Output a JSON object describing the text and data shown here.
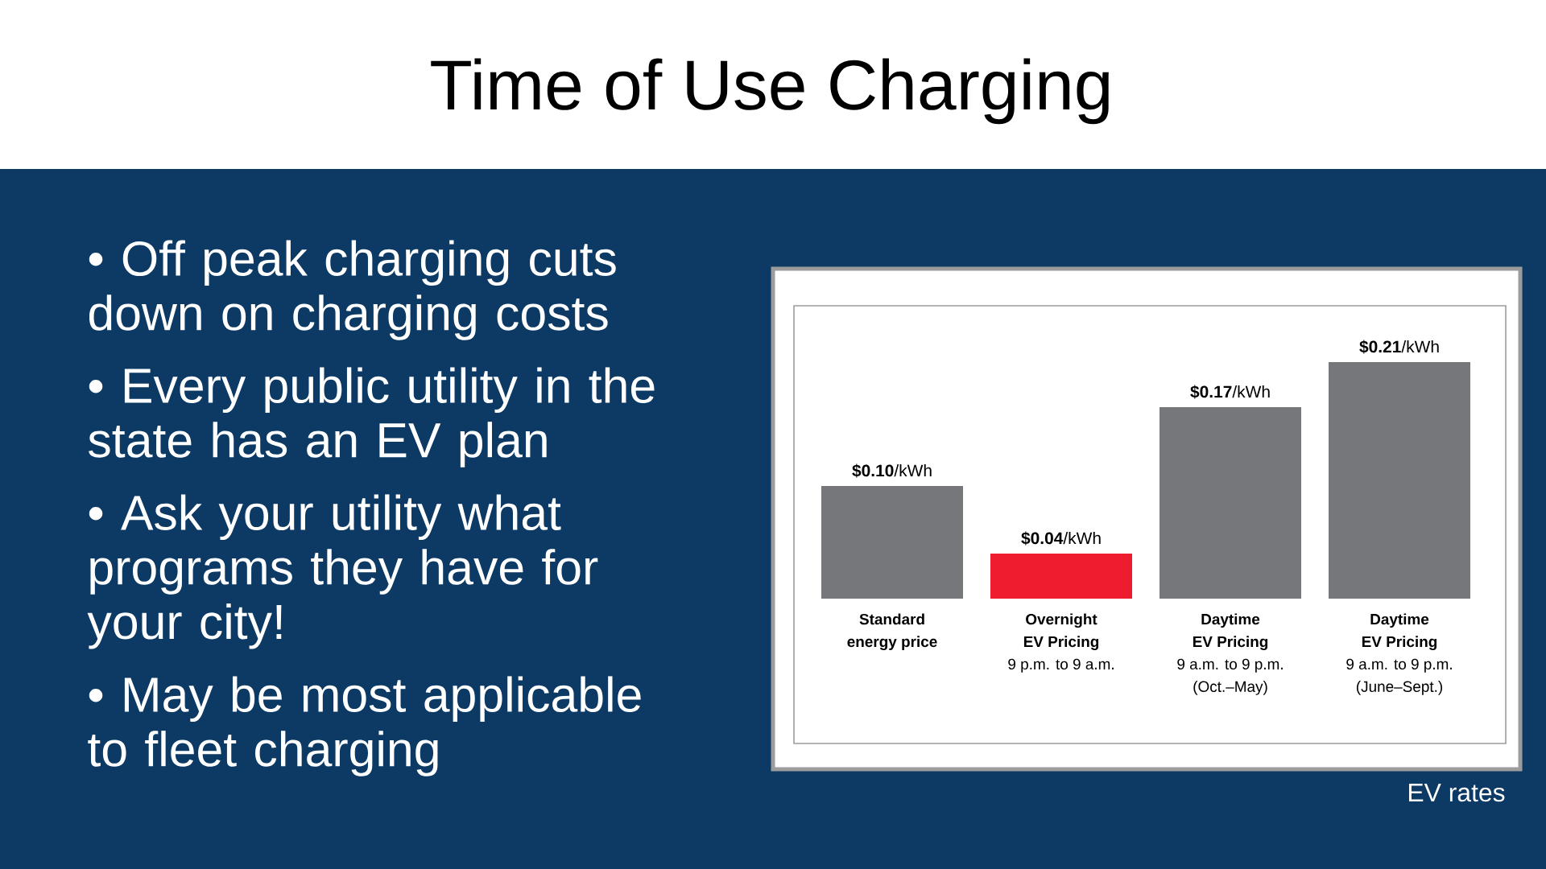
{
  "chart_data": {
    "type": "bar",
    "title": "Time of Use Charging",
    "categories": [
      "**Standard**\n**energy price**",
      "**Overnight**\n**EV Pricing**\n9 p.m. to 9 a.m.",
      "**Daytime**\n**EV Pricing**\n9 a.m. to 9 p.m.\n(Oct.–May)",
      "**Daytime**\n**EV Pricing**\n9 a.m. to 9 p.m.\n(June–Sept.)"
    ],
    "values": [
      0.1,
      0.04,
      0.17,
      0.21
    ],
    "colors": [
      "#76777b",
      "#ed1c2e",
      "#76777b",
      "#76777b"
    ],
    "value_labels": [
      "**$0.10**/kWh",
      "**$0.04**/kWh",
      "**$0.17**/kWh",
      "**$0.21**/kWh"
    ],
    "annotations": [
      "• Off peak charging cuts\ndown on charging costs",
      "• Every public utility in the\nstate has an EV plan",
      "• Ask your utility what\nprograms they have for\nyour city!",
      "• May be most applicable\nto fleet charging",
      "EV rates"
    ]
  }
}
